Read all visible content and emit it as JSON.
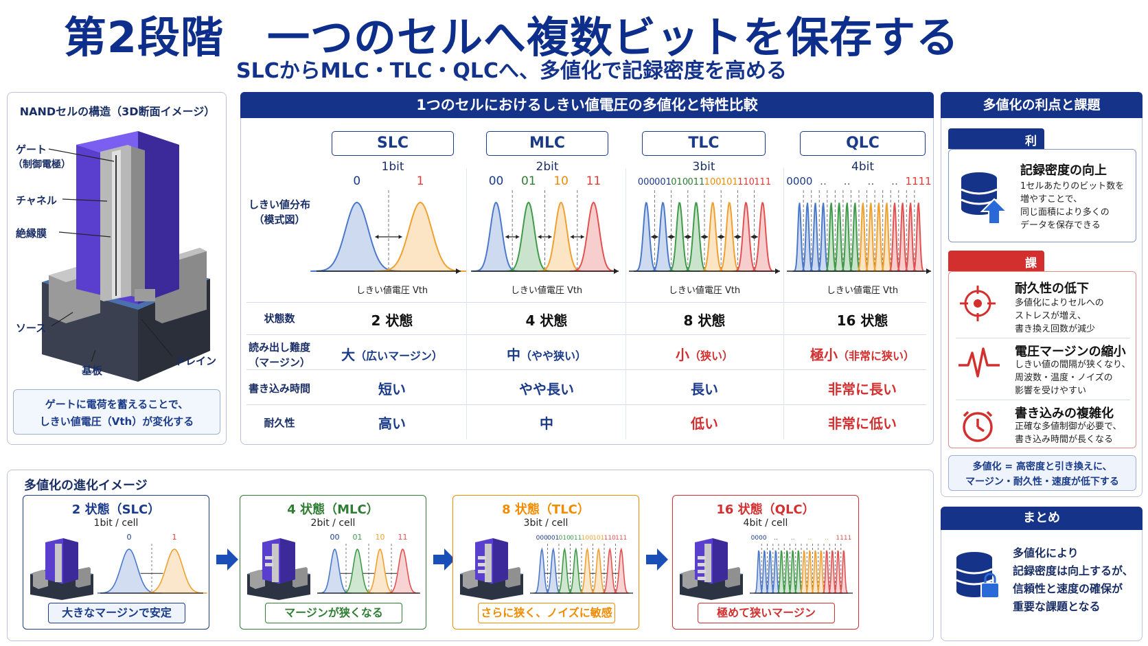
{
  "title": "第2段階　一つのセルへ複数ビットを保存する",
  "subtitle": "SLCからMLC・TLC・QLCへ、多値化で記録密度を高める",
  "left": {
    "heading": "NANDセルの構造（3D断面イメージ）",
    "labels": {
      "gate1": "ゲート",
      "gate2": "（制御電極）",
      "channel": "チャネル",
      "insulator": "絶縁膜",
      "source": "ソース",
      "substrate": "基板",
      "drain": "ドレイン"
    },
    "caption1": "ゲートに電荷を蓄えることで、",
    "caption2": "しきい値電圧（Vth）が変化する"
  },
  "center": {
    "heading": "1つのセルにおけるしきい値電圧の多値化と特性比較",
    "row_dist1": "しきい値分布",
    "row_dist2": "（模式図）",
    "row_states": "状態数",
    "row_read1": "読み出し難度",
    "row_read2": "（マージン）",
    "row_write": "書き込み時間",
    "row_endur": "耐久性",
    "axis": "しきい値電圧 Vth",
    "cols": [
      {
        "name": "SLC",
        "bits": "1bit",
        "states": "2 状態",
        "read_main": "大",
        "read_sub": "（広いマージン）",
        "write": "短い",
        "endur": "高い",
        "color": "#1a3a8a",
        "labels": [
          "0",
          "1"
        ],
        "label_colors": [
          "#1a3a8a",
          "#e53935"
        ]
      },
      {
        "name": "MLC",
        "bits": "2bit",
        "states": "4 状態",
        "read_main": "中",
        "read_sub": "（やや狭い）",
        "write": "やや長い",
        "endur": "中",
        "color": "#1a3a8a",
        "labels": [
          "00",
          "01",
          "10",
          "11"
        ],
        "label_colors": [
          "#1a3a8a",
          "#2e7d32",
          "#ef8c00",
          "#e53935"
        ]
      },
      {
        "name": "TLC",
        "bits": "3bit",
        "states": "8 状態",
        "read_main": "小",
        "read_sub": "（狭い）",
        "write": "長い",
        "endur": "低い",
        "color": "#d32f2f",
        "labels": [
          "000",
          "001",
          "010",
          "011",
          "100",
          "101",
          "110",
          "111"
        ],
        "label_colors": [
          "#1a3a8a",
          "#1a3a8a",
          "#2e7d32",
          "#2e7d32",
          "#ef8c00",
          "#ef8c00",
          "#e53935",
          "#e53935"
        ]
      },
      {
        "name": "QLC",
        "bits": "4bit",
        "states": "16 状態",
        "read_main": "極小",
        "read_sub": "（非常に狭い）",
        "write": "非常に長い",
        "endur": "非常に低い",
        "color": "#d32f2f",
        "labels": [
          "0000",
          "‥",
          "‥",
          "‥",
          "‥",
          "1111"
        ],
        "label_colors": [
          "#1a3a8a",
          "#555",
          "#555",
          "#555",
          "#555",
          "#e53935"
        ]
      }
    ]
  },
  "right": {
    "heading": "多値化の利点と課題",
    "merit_tag": "利点",
    "merit_title": "記録密度の向上",
    "merit_text": [
      "1セルあたりのビット数を",
      "増やすことで、",
      "同じ面積により多くの",
      "データを保存できる"
    ],
    "issue_tag": "課題",
    "issues": [
      {
        "title": "耐久性の低下",
        "lines": [
          "多値化によりセルへの",
          "ストレスが増え、",
          "書き換え回数が減少"
        ],
        "icon": "target-icon"
      },
      {
        "title": "電圧マージンの縮小",
        "lines": [
          "しきい値の間隔が狭くなり、",
          "周波数・温度・ノイズの",
          "影響を受けやすい"
        ],
        "icon": "pulse-icon"
      },
      {
        "title": "書き込みの複雑化",
        "lines": [
          "正確な多値制御が必要で、",
          "書き込み時間が長くなる"
        ],
        "icon": "clock-icon"
      }
    ],
    "summary_box1": "多値化 = 高密度と引き換えに、",
    "summary_box2": "マージン・耐久性・速度が低下する",
    "matome_heading": "まとめ",
    "matome_lines": [
      "多値化により",
      "記録密度は向上するが、",
      "信頼性と速度の確保が",
      "重要な課題となる"
    ]
  },
  "evolution": {
    "heading": "多値化の進化イメージ",
    "stages": [
      {
        "title": "2 状態（SLC）",
        "sub": "1bit / cell",
        "caption": "大きなマージンで安定",
        "color": "#1a3a8a",
        "labels": [
          "0",
          "1"
        ]
      },
      {
        "title": "4 状態（MLC）",
        "sub": "2bit / cell",
        "caption": "マージンが狭くなる",
        "color": "#2e7d32",
        "labels": [
          "00",
          "01",
          "10",
          "11"
        ]
      },
      {
        "title": "8 状態（TLC）",
        "sub": "3bit / cell",
        "caption": "さらに狭く、ノイズに敏感",
        "color": "#ef8c00",
        "labels": [
          "000",
          "001",
          "010",
          "011",
          "100",
          "101",
          "110",
          "111"
        ]
      },
      {
        "title": "16 状態（QLC）",
        "sub": "4bit / cell",
        "caption": "極めて狭いマージン",
        "color": "#d32f2f",
        "labels": [
          "0000",
          "‥",
          "‥",
          "‥",
          "‥",
          "1111"
        ]
      }
    ]
  },
  "colors": {
    "navy": "#16338a",
    "red": "#d32f2f",
    "blue_curve": "#4a79c9",
    "green_curve": "#3f9a48",
    "orange_curve": "#f0a030",
    "red_curve": "#e35050"
  }
}
